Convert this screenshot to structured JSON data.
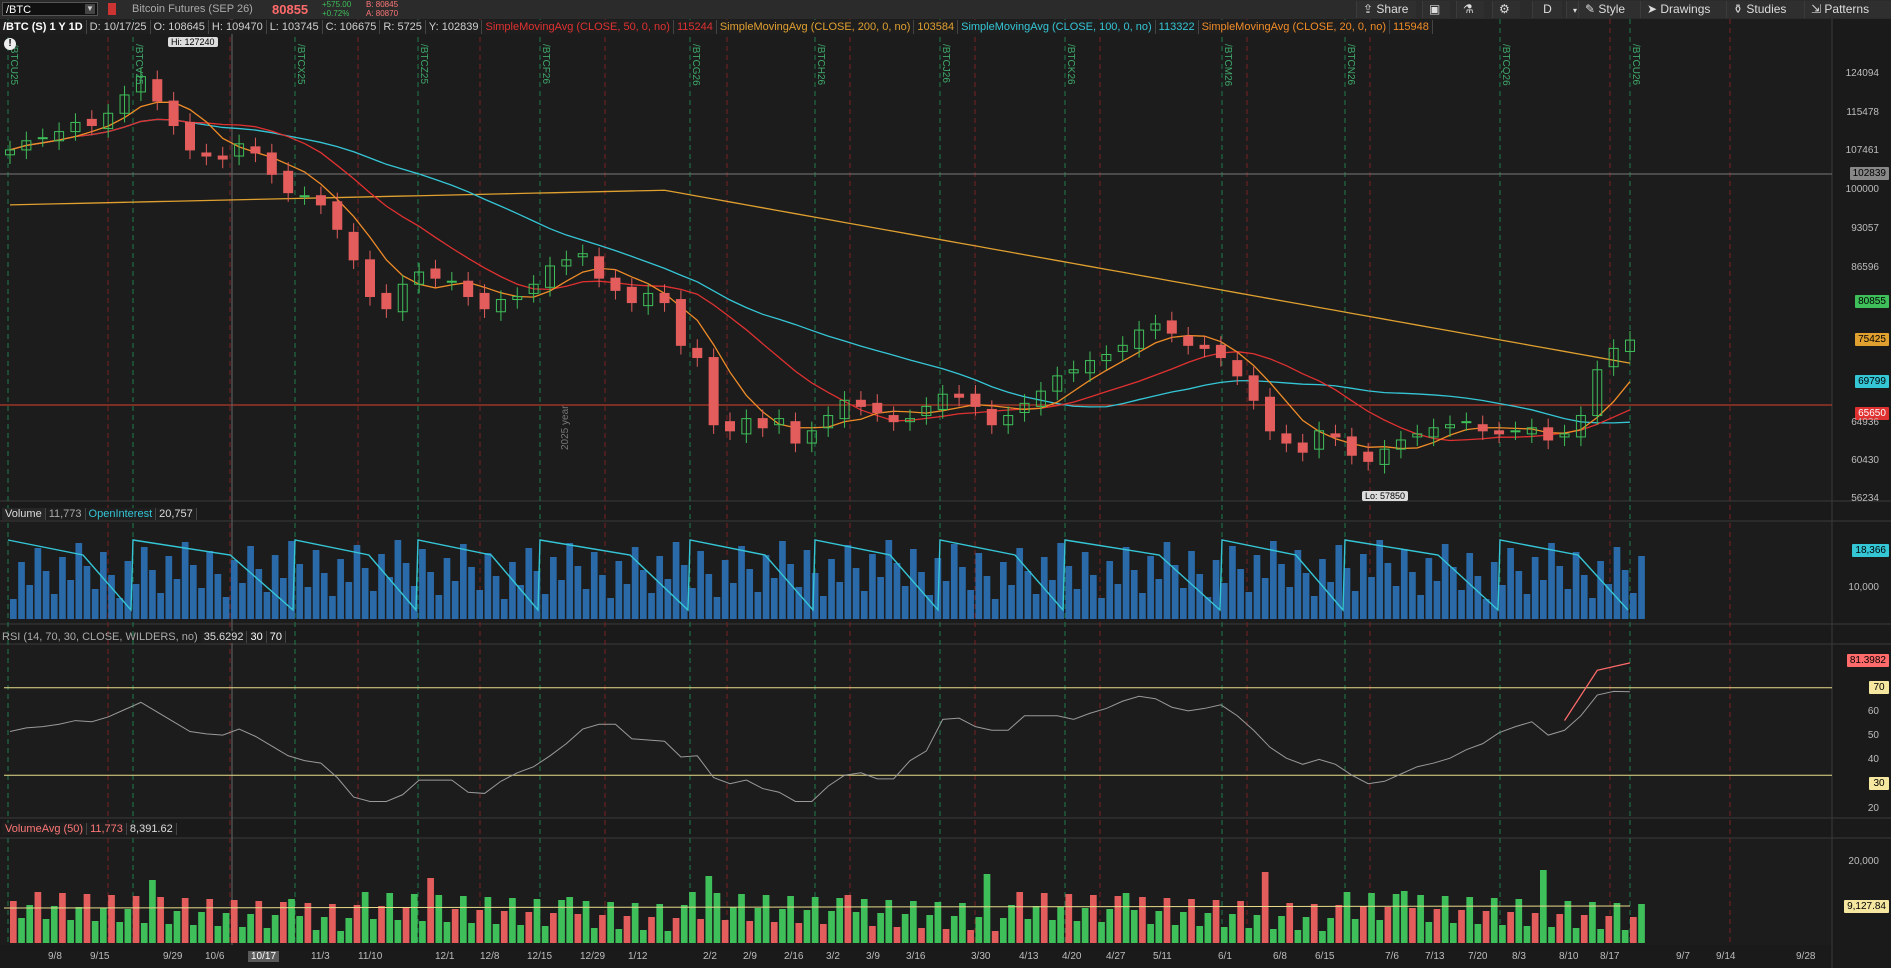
{
  "toolbar": {
    "symbol": "/BTC",
    "description": "Bitcoin Futures (SEP 26)",
    "last_price": "80855",
    "change_abs": "+575.00",
    "change_pct": "+0.72%",
    "bid": "B: 80845",
    "ask": "A: 80870",
    "buttons": {
      "share": "Share",
      "aggregation": "D",
      "style": "Style",
      "drawings": "Drawings",
      "studies": "Studies",
      "patterns": "Patterns"
    }
  },
  "price_panel": {
    "header": "/BTC (S) 1 Y 1D",
    "ohlc": {
      "date": "D: 10/17/25",
      "open": "O: 108645",
      "high": "H: 109470",
      "low": "L: 103745",
      "close": "C: 106675",
      "range": "R: 5725",
      "y": "Y: 102839"
    },
    "studies": [
      {
        "label": "SimpleMovingAvg (CLOSE, 50, 0, no)",
        "value": "115244",
        "color": "#e03131"
      },
      {
        "label": "SimpleMovingAvg (CLOSE, 200, 0, no)",
        "value": "103584",
        "color": "#e0a030"
      },
      {
        "label": "SimpleMovingAvg (CLOSE, 100, 0, no)",
        "value": "113322",
        "color": "#35c6d6"
      },
      {
        "label": "SimpleMovingAvg (CLOSE, 20, 0, no)",
        "value": "115948",
        "color": "#f08c28"
      }
    ],
    "high_marker": "Hi: 127240",
    "low_marker": "Lo: 57850",
    "y_ticks": [
      "124094",
      "115478",
      "107461",
      "100000",
      "93057",
      "86596",
      "60430",
      "56234"
    ],
    "price_tags": [
      {
        "text": "102839",
        "color": "#888888"
      },
      {
        "text": "80855",
        "color": "#3fbf5a"
      },
      {
        "text": "75425",
        "color": "#e0a030"
      },
      {
        "text": "69799",
        "color": "#35c6d6"
      },
      {
        "text": "65650",
        "color": "#e03131"
      },
      {
        "text": "64936",
        "color": "#888888"
      }
    ],
    "expiration_labels": [
      "/BTCU25",
      "/BTCV25",
      "/BTCX25",
      "/BTCZ25",
      "/BTCF26",
      "/BTCG26",
      "/BTCH26",
      "/BTCJ26",
      "/BTCK26",
      "/BTCM26",
      "/BTCN26",
      "/BTCQ26",
      "/BTCU26"
    ],
    "year_label": "2025 year"
  },
  "volume_panel": {
    "title": "Volume",
    "volume_value": "11,773",
    "oi_title": "OpenInterest",
    "oi_value": "20,757",
    "tag_oi": "18,366",
    "y_tick": "10,000"
  },
  "rsi_panel": {
    "title": "RSI (14, 70, 30, CLOSE, WILDERS, no)",
    "value": "35.6292",
    "ob": "30",
    "os": "70",
    "tag": "81.3982",
    "y_ticks": [
      "70",
      "60",
      "50",
      "40",
      "30",
      "20"
    ]
  },
  "volavg_panel": {
    "title": "VolumeAvg (50)",
    "value1": "11,773",
    "value2": "8,391.62",
    "tag": "9,127.84",
    "y_tick": "20,000"
  },
  "x_axis": [
    "9/8",
    "9/15",
    "9/29",
    "10/6",
    "10/17",
    "11/3",
    "11/10",
    "12/1",
    "12/8",
    "12/15",
    "12/29",
    "1/12",
    "2/2",
    "2/9",
    "2/16",
    "3/2",
    "3/9",
    "3/16",
    "3/30",
    "4/13",
    "4/20",
    "4/27",
    "5/11",
    "6/1",
    "6/8",
    "6/15",
    "7/6",
    "7/13",
    "7/20",
    "8/3",
    "8/10",
    "8/17",
    "9/7",
    "9/14",
    "9/28"
  ],
  "chart_data": {
    "type": "candlestick",
    "price_range": [
      55000,
      130000
    ],
    "series_names": [
      "SMA 20",
      "SMA 50",
      "SMA 100",
      "SMA 200"
    ],
    "close_series": [
      112000,
      113500,
      114000,
      115000,
      116500,
      116000,
      118000,
      121000,
      124000,
      120000,
      116000,
      112000,
      111000,
      110500,
      113000,
      111500,
      108000,
      105000,
      104500,
      103000,
      99000,
      94000,
      88000,
      86000,
      90000,
      92000,
      91000,
      90500,
      88000,
      86000,
      87500,
      88000,
      90000,
      93000,
      94000,
      95000,
      91000,
      89000,
      87000,
      88500,
      87000,
      80000,
      78000,
      67000,
      66000,
      68000,
      66500,
      68000,
      64000,
      66000,
      68500,
      71000,
      70000,
      69000,
      67500,
      68000,
      70000,
      72000,
      71500,
      70000,
      67000,
      68500,
      70500,
      72500,
      75000,
      76000,
      77500,
      78500,
      80000,
      82500,
      83500,
      82000,
      80000,
      79500,
      78000,
      75000,
      71000,
      66000,
      64000,
      62500,
      66000,
      65000,
      62000,
      61000,
      63000,
      64500,
      65500,
      66500,
      67000,
      67500,
      66000,
      65500,
      66000,
      66500,
      64500,
      65500,
      68500,
      76000,
      79500,
      80855
    ]
  }
}
